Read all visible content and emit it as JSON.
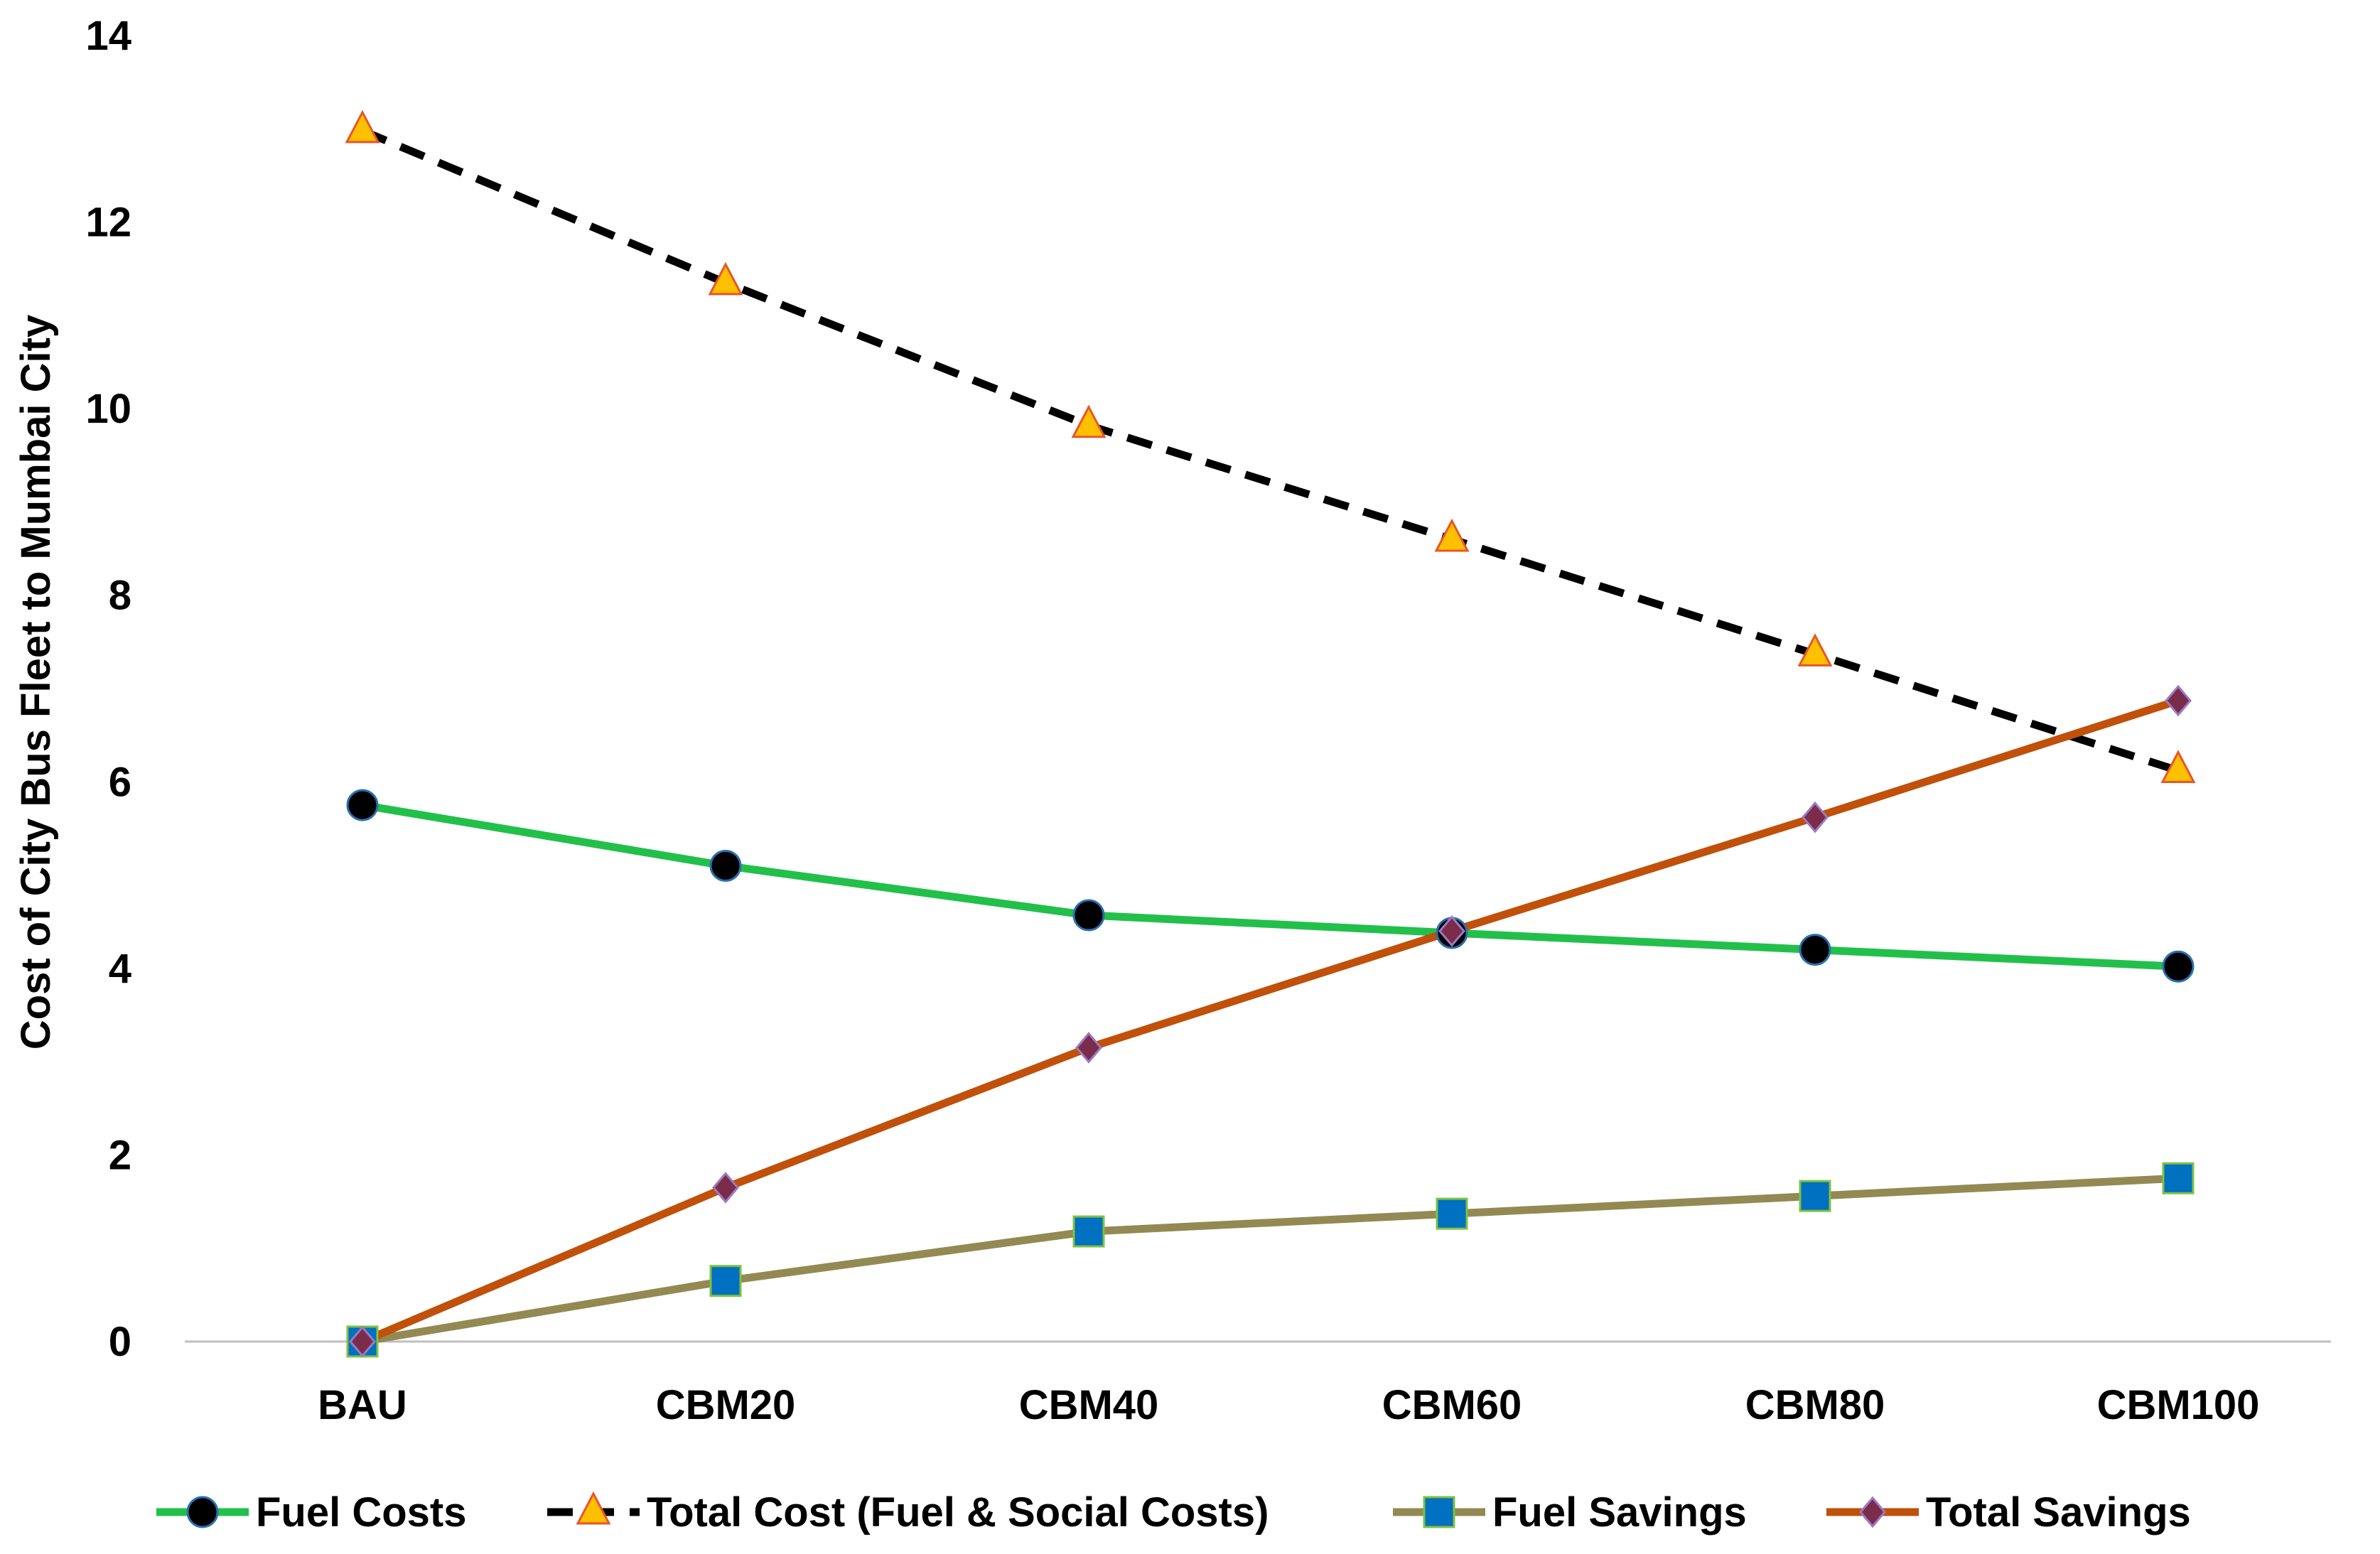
{
  "chart_data": {
    "type": "line",
    "title": "",
    "xlabel": "",
    "ylabel": "Cost of City Bus Fleet to Mumbai City",
    "categories": [
      "BAU",
      "CBM20",
      "CBM40",
      "CBM60",
      "CBM80",
      "CBM100"
    ],
    "ylim": [
      0,
      14
    ],
    "yticks": [
      0,
      2,
      4,
      6,
      8,
      10,
      12,
      14
    ],
    "grid": false,
    "legend_position": "bottom",
    "series": [
      {
        "name": "Fuel Costs",
        "values": [
          5.75,
          5.1,
          4.57,
          4.38,
          4.2,
          4.02
        ],
        "color": "#22c04a",
        "line_style": "solid",
        "marker": "circle",
        "marker_fill": "#000000",
        "marker_stroke": "#2a6fb0"
      },
      {
        "name": "Total Cost (Fuel & Social Costs)",
        "values": [
          12.98,
          11.35,
          9.82,
          8.6,
          7.37,
          6.12
        ],
        "color": "#000000",
        "line_style": "dashed",
        "marker": "triangle",
        "marker_fill": "#ffc000",
        "marker_stroke": "#e8552a"
      },
      {
        "name": "Fuel Savings",
        "values": [
          0,
          0.65,
          1.18,
          1.37,
          1.56,
          1.75
        ],
        "color": "#938953",
        "line_style": "solid",
        "marker": "square",
        "marker_fill": "#0070c0",
        "marker_stroke": "#7fc241"
      },
      {
        "name": "Total Savings",
        "values": [
          0,
          1.65,
          3.15,
          4.4,
          5.62,
          6.87
        ],
        "color": "#c0500a",
        "line_style": "solid",
        "marker": "diamond",
        "marker_fill": "#7b2c4a",
        "marker_stroke": "#9a7ac2"
      }
    ]
  }
}
